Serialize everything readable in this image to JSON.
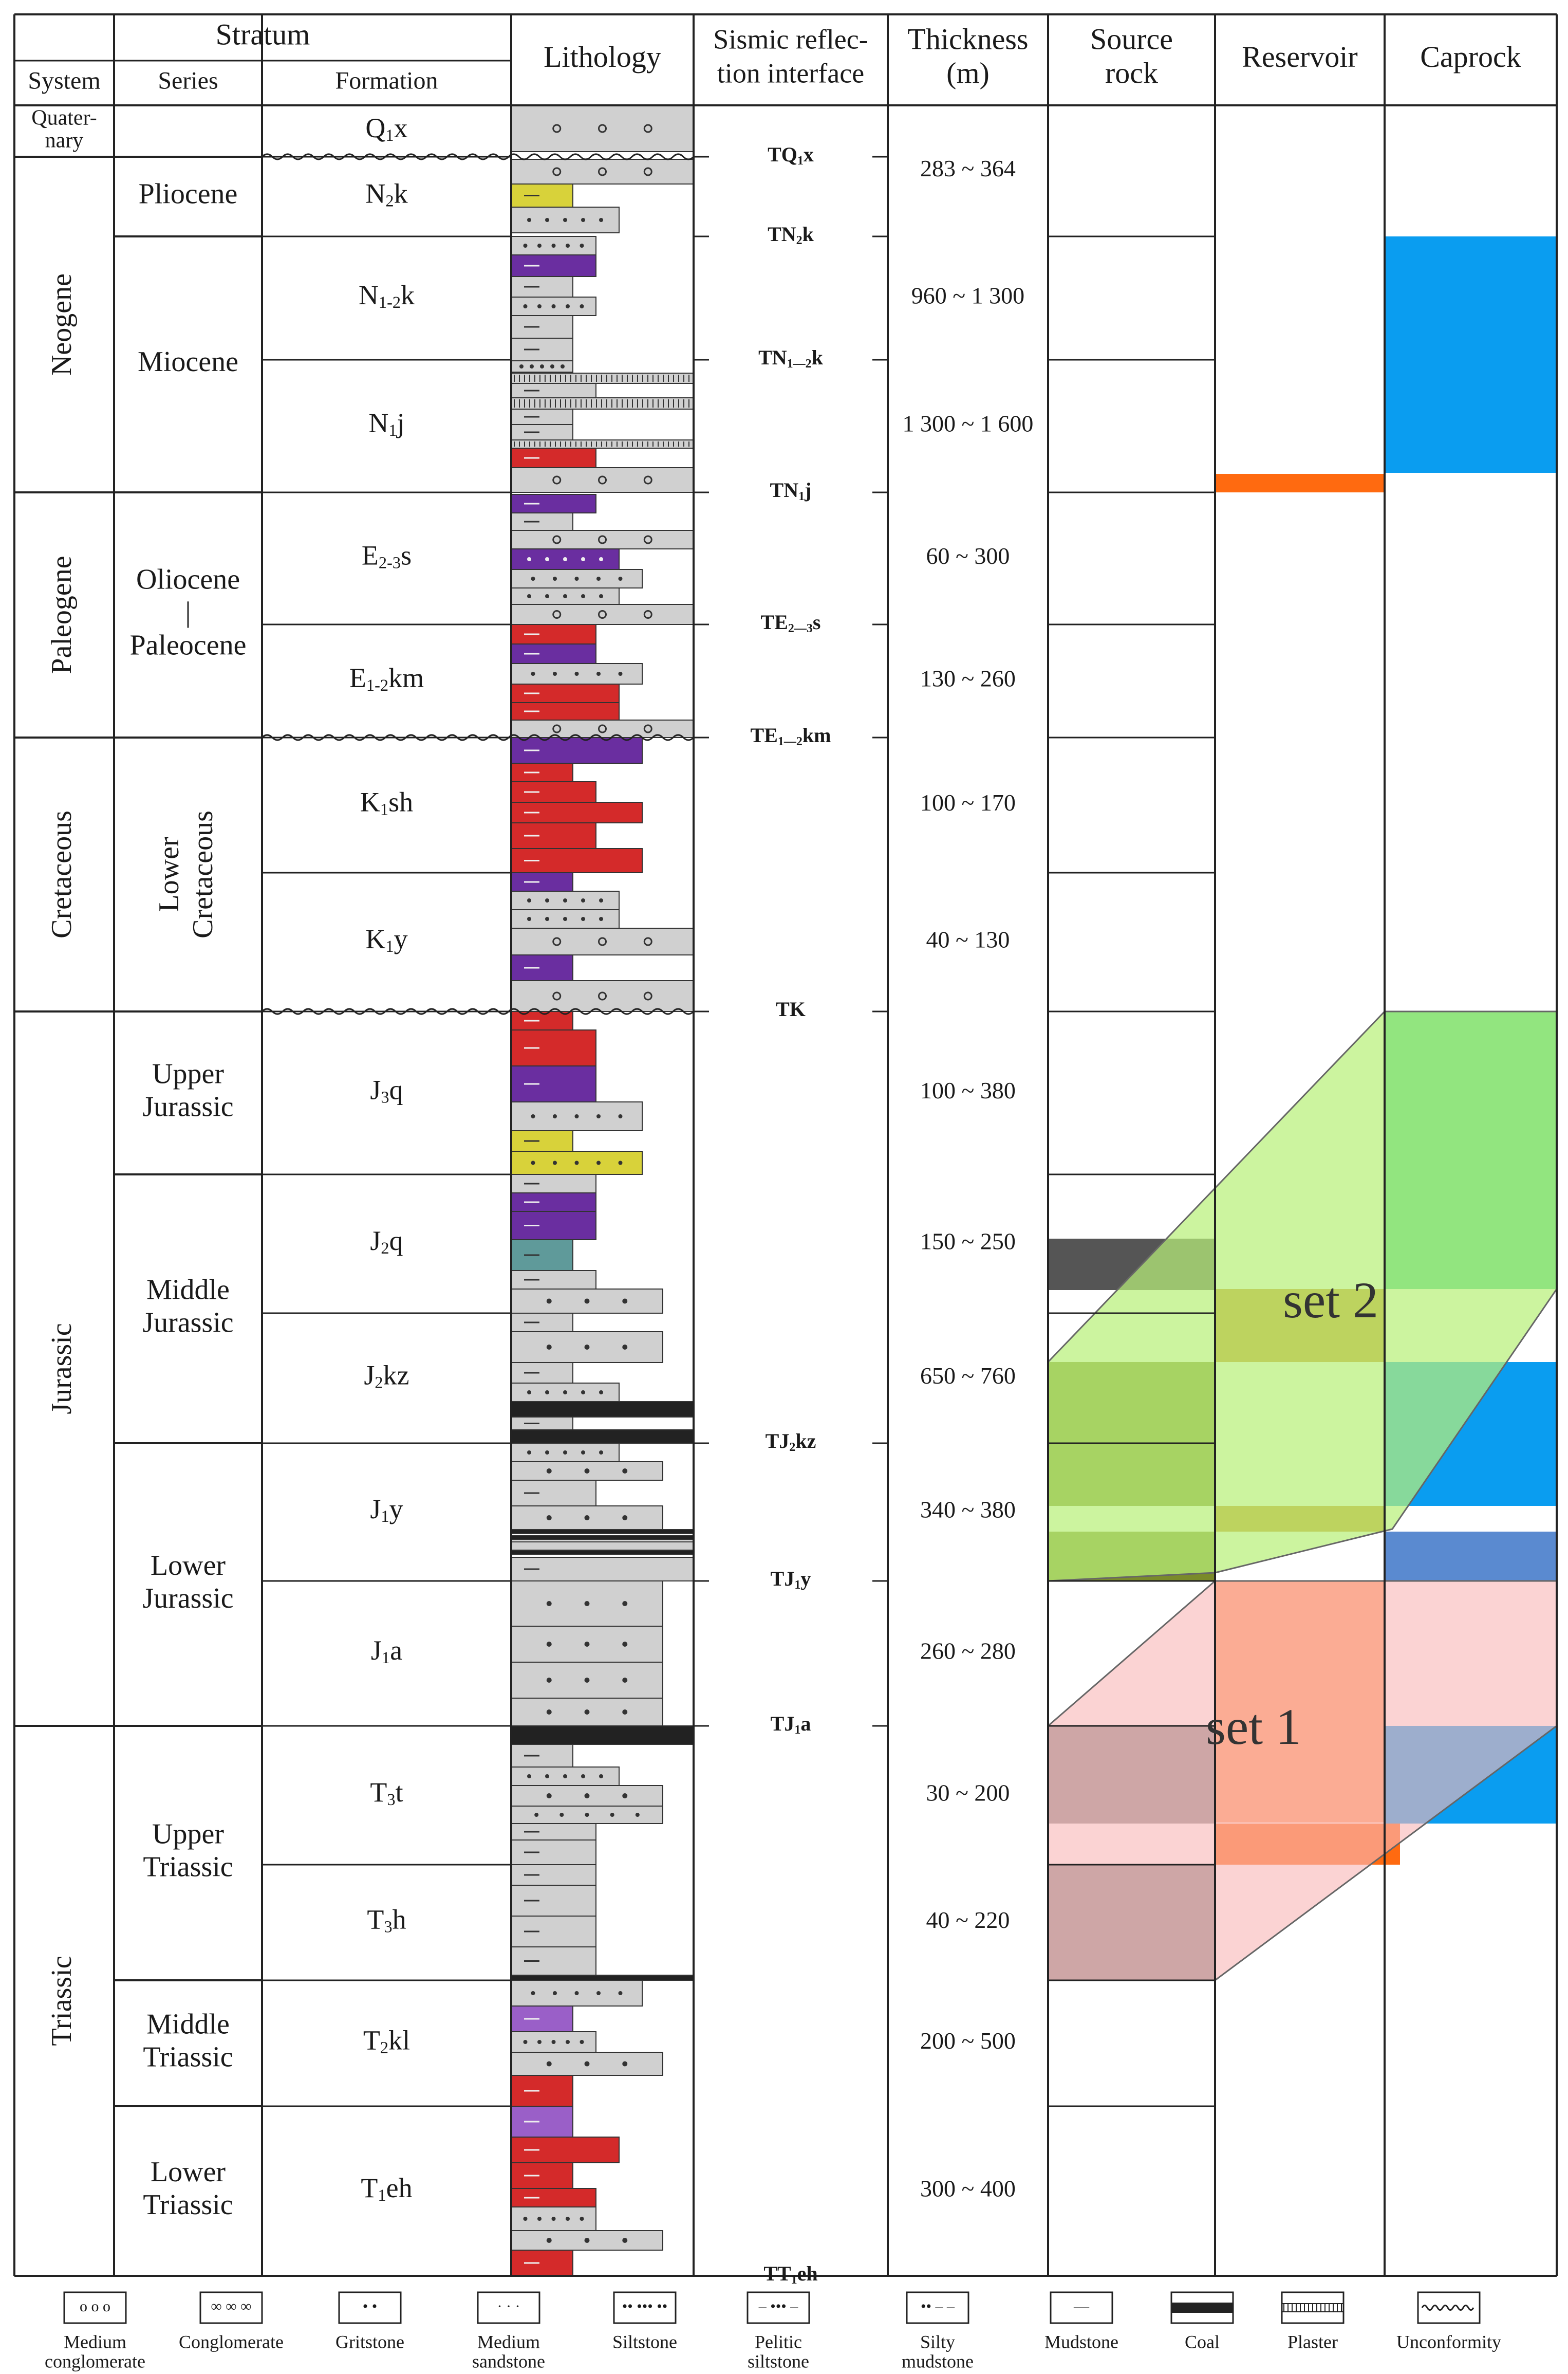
{
  "header": {
    "stratum": "Stratum",
    "system": "System",
    "series": "Series",
    "formation": "Formation",
    "lithology": "Lithology",
    "seismic_line1": "Sismic reflec-",
    "seismic_line2": "tion interface",
    "thickness_line1": "Thickness",
    "thickness_line2": "(m)",
    "source_line1": "Source",
    "source_line2": "rock",
    "reservoir": "Reservoir",
    "caprock": "Caprock"
  },
  "systems": [
    {
      "id": "quaternary",
      "lines": [
        "Quater-",
        "nary"
      ],
      "vertical": false
    },
    {
      "id": "neogene",
      "lines": [
        "Neogene"
      ],
      "vertical": true
    },
    {
      "id": "paleogene",
      "lines": [
        "Paleogene"
      ],
      "vertical": true
    },
    {
      "id": "cretaceous",
      "lines": [
        "Cretaceous"
      ],
      "vertical": true
    },
    {
      "id": "jurassic",
      "lines": [
        "Jurassic"
      ],
      "vertical": true
    },
    {
      "id": "triassic",
      "lines": [
        "Triassic"
      ],
      "vertical": true
    }
  ],
  "series": [
    {
      "id": "pliocene",
      "lines": [
        "Pliocene"
      ]
    },
    {
      "id": "miocene",
      "lines": [
        "Miocene"
      ]
    },
    {
      "id": "oliocene-paleocene",
      "lines": [
        "Oliocene",
        "|",
        "Paleocene"
      ]
    },
    {
      "id": "lower-cretaceous",
      "lines": [
        "Lower",
        "Cretaceous"
      ],
      "vertical": true
    },
    {
      "id": "upper-jurassic",
      "lines": [
        "Upper",
        "Jurassic"
      ]
    },
    {
      "id": "middle-jurassic",
      "lines": [
        "Middle",
        "Jurassic"
      ]
    },
    {
      "id": "lower-jurassic",
      "lines": [
        "Lower",
        "Jurassic"
      ]
    },
    {
      "id": "upper-triassic",
      "lines": [
        "Upper",
        "Triassic"
      ]
    },
    {
      "id": "middle-triassic",
      "lines": [
        "Middle",
        "Triassic"
      ]
    },
    {
      "id": "lower-triassic",
      "lines": [
        "Lower",
        "Triassic"
      ]
    }
  ],
  "formations": [
    {
      "base": "Q",
      "sub": "1",
      "rest": "x"
    },
    {
      "base": "N",
      "sub": "2",
      "rest": "k"
    },
    {
      "base": "N",
      "sub": "1-2",
      "rest": "k"
    },
    {
      "base": "N",
      "sub": "1",
      "rest": "j"
    },
    {
      "base": "E",
      "sub": "2-3",
      "rest": "s"
    },
    {
      "base": "E",
      "sub": "1-2",
      "rest": "km"
    },
    {
      "base": "K",
      "sub": "1",
      "rest": "sh"
    },
    {
      "base": "K",
      "sub": "1",
      "rest": "y"
    },
    {
      "base": "J",
      "sub": "3",
      "rest": "q"
    },
    {
      "base": "J",
      "sub": "2",
      "rest": "q"
    },
    {
      "base": "J",
      "sub": "2",
      "rest": "kz"
    },
    {
      "base": "J",
      "sub": "1",
      "rest": "y"
    },
    {
      "base": "J",
      "sub": "1",
      "rest": "a"
    },
    {
      "base": "T",
      "sub": "3",
      "rest": "t"
    },
    {
      "base": "T",
      "sub": "3",
      "rest": "h"
    },
    {
      "base": "T",
      "sub": "2",
      "rest": "kl"
    },
    {
      "base": "T",
      "sub": "1",
      "rest": "eh"
    }
  ],
  "seismic_interfaces": [
    {
      "base": "TQ",
      "sub": "1",
      "rest": "x"
    },
    {
      "base": "TN",
      "sub": "2",
      "rest": "k"
    },
    {
      "base": "TN",
      "sub": "1—2",
      "rest": "k"
    },
    {
      "base": "TN",
      "sub": "1",
      "rest": "j"
    },
    {
      "base": "TE",
      "sub": "2—3",
      "rest": "s"
    },
    {
      "base": "TE",
      "sub": "1—2",
      "rest": "km"
    },
    {
      "base": "TK",
      "sub": "",
      "rest": ""
    },
    {
      "base": "TJ",
      "sub": "2",
      "rest": "kz"
    },
    {
      "base": "TJ",
      "sub": "1",
      "rest": "y"
    },
    {
      "base": "TJ",
      "sub": "1",
      "rest": "a"
    },
    {
      "base": "TT",
      "sub": "1",
      "rest": "eh"
    }
  ],
  "thickness_ranges": [
    "283 ~ 364",
    "960 ~ 1 300",
    "1 300 ~ 1 600",
    "60 ~ 300",
    "130 ~ 260",
    "100 ~ 170",
    "40 ~ 130",
    "100 ~ 380",
    "150 ~ 250",
    "650 ~ 760",
    "340 ~ 380",
    "260 ~ 280",
    "30 ~ 200",
    "40 ~ 220",
    "200 ~ 500",
    "300 ~ 400"
  ],
  "sets": {
    "set2": "set 2",
    "set1": "set 1"
  },
  "legend": [
    {
      "id": "medium-conglomerate",
      "lines": [
        "Medium",
        "conglomerate"
      ],
      "symbol": "o o o"
    },
    {
      "id": "conglomerate",
      "lines": [
        "Conglomerate"
      ],
      "symbol": "∞ ∞ ∞"
    },
    {
      "id": "gritstone",
      "lines": [
        "Gritstone"
      ],
      "symbol": "•   •"
    },
    {
      "id": "medium-sandstone",
      "lines": [
        "Medium",
        "sandstone"
      ],
      "symbol": "· · ·"
    },
    {
      "id": "siltstone",
      "lines": [
        "Siltstone"
      ],
      "symbol": "•• ••• ••"
    },
    {
      "id": "pelitic-siltstone",
      "lines": [
        "Pelitic",
        "siltstone"
      ],
      "symbol": "– ••• –"
    },
    {
      "id": "silty-mudstone",
      "lines": [
        "Silty",
        "mudstone"
      ],
      "symbol": "•• – –"
    },
    {
      "id": "mudstone",
      "lines": [
        "Mudstone"
      ],
      "symbol": "—"
    },
    {
      "id": "coal",
      "lines": [
        "Coal"
      ],
      "symbol": ""
    },
    {
      "id": "plaster",
      "lines": [
        "Plaster"
      ],
      "symbol": ""
    },
    {
      "id": "unconformity",
      "lines": [
        "Unconformity"
      ],
      "symbol": "〰〰"
    }
  ],
  "colors": {
    "grid": "#222222",
    "rock_gray": "#d0d0d0",
    "purple": "#6a2ea0",
    "red": "#d42a2a",
    "yellow": "#d8d23a",
    "teal": "#5f9a9a",
    "lavender": "#9a5fc8",
    "coal": "#222222",
    "caprock_blue": "#0a9df0",
    "caprock_green": "#31c98e",
    "reservoir_orange": "#ff6a10",
    "set2_fill": "#b8f07a",
    "set1_fill": "#f8b8b8",
    "source_dark": "#555555",
    "source_olive": "#7a8a2a",
    "source_gray": "#8a8a8a"
  }
}
